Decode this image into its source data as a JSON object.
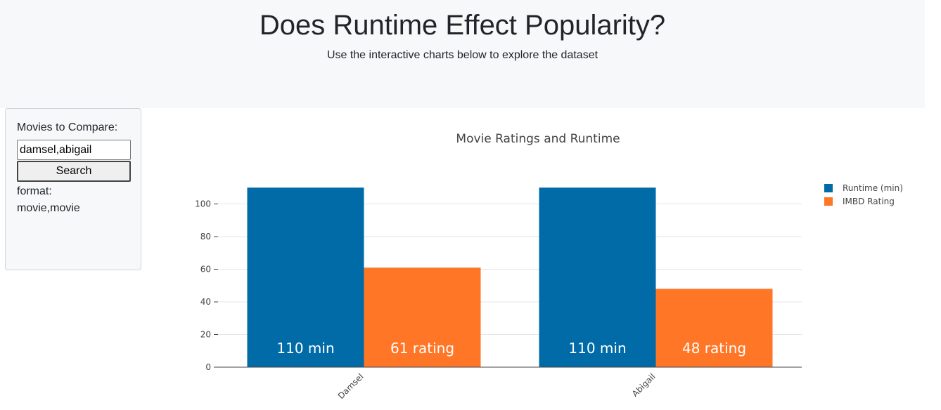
{
  "header": {
    "title": "Does Runtime Effect Popularity?",
    "subtitle": "Use the interactive charts below to explore the dataset"
  },
  "sidebar": {
    "label": "Movies to Compare:",
    "search_value": "damsel,abigail",
    "search_button": "Search",
    "format_label": "format:",
    "format_example": "movie,movie"
  },
  "chart_data": {
    "type": "bar",
    "title": "Movie Ratings and Runtime",
    "categories": [
      "Damsel",
      "Abigail"
    ],
    "series": [
      {
        "name": "Runtime (min)",
        "values": [
          110,
          110
        ],
        "labels": [
          "110 min",
          "110 min"
        ],
        "color": "#006ba7"
      },
      {
        "name": "IMBD Rating",
        "values": [
          61,
          48
        ],
        "labels": [
          "61 rating",
          "48 rating"
        ],
        "color": "#ff7627"
      }
    ],
    "yticks": [
      0,
      20,
      40,
      60,
      80,
      100
    ],
    "ylim": [
      0,
      120
    ],
    "grid": true,
    "legend": "top-right"
  }
}
